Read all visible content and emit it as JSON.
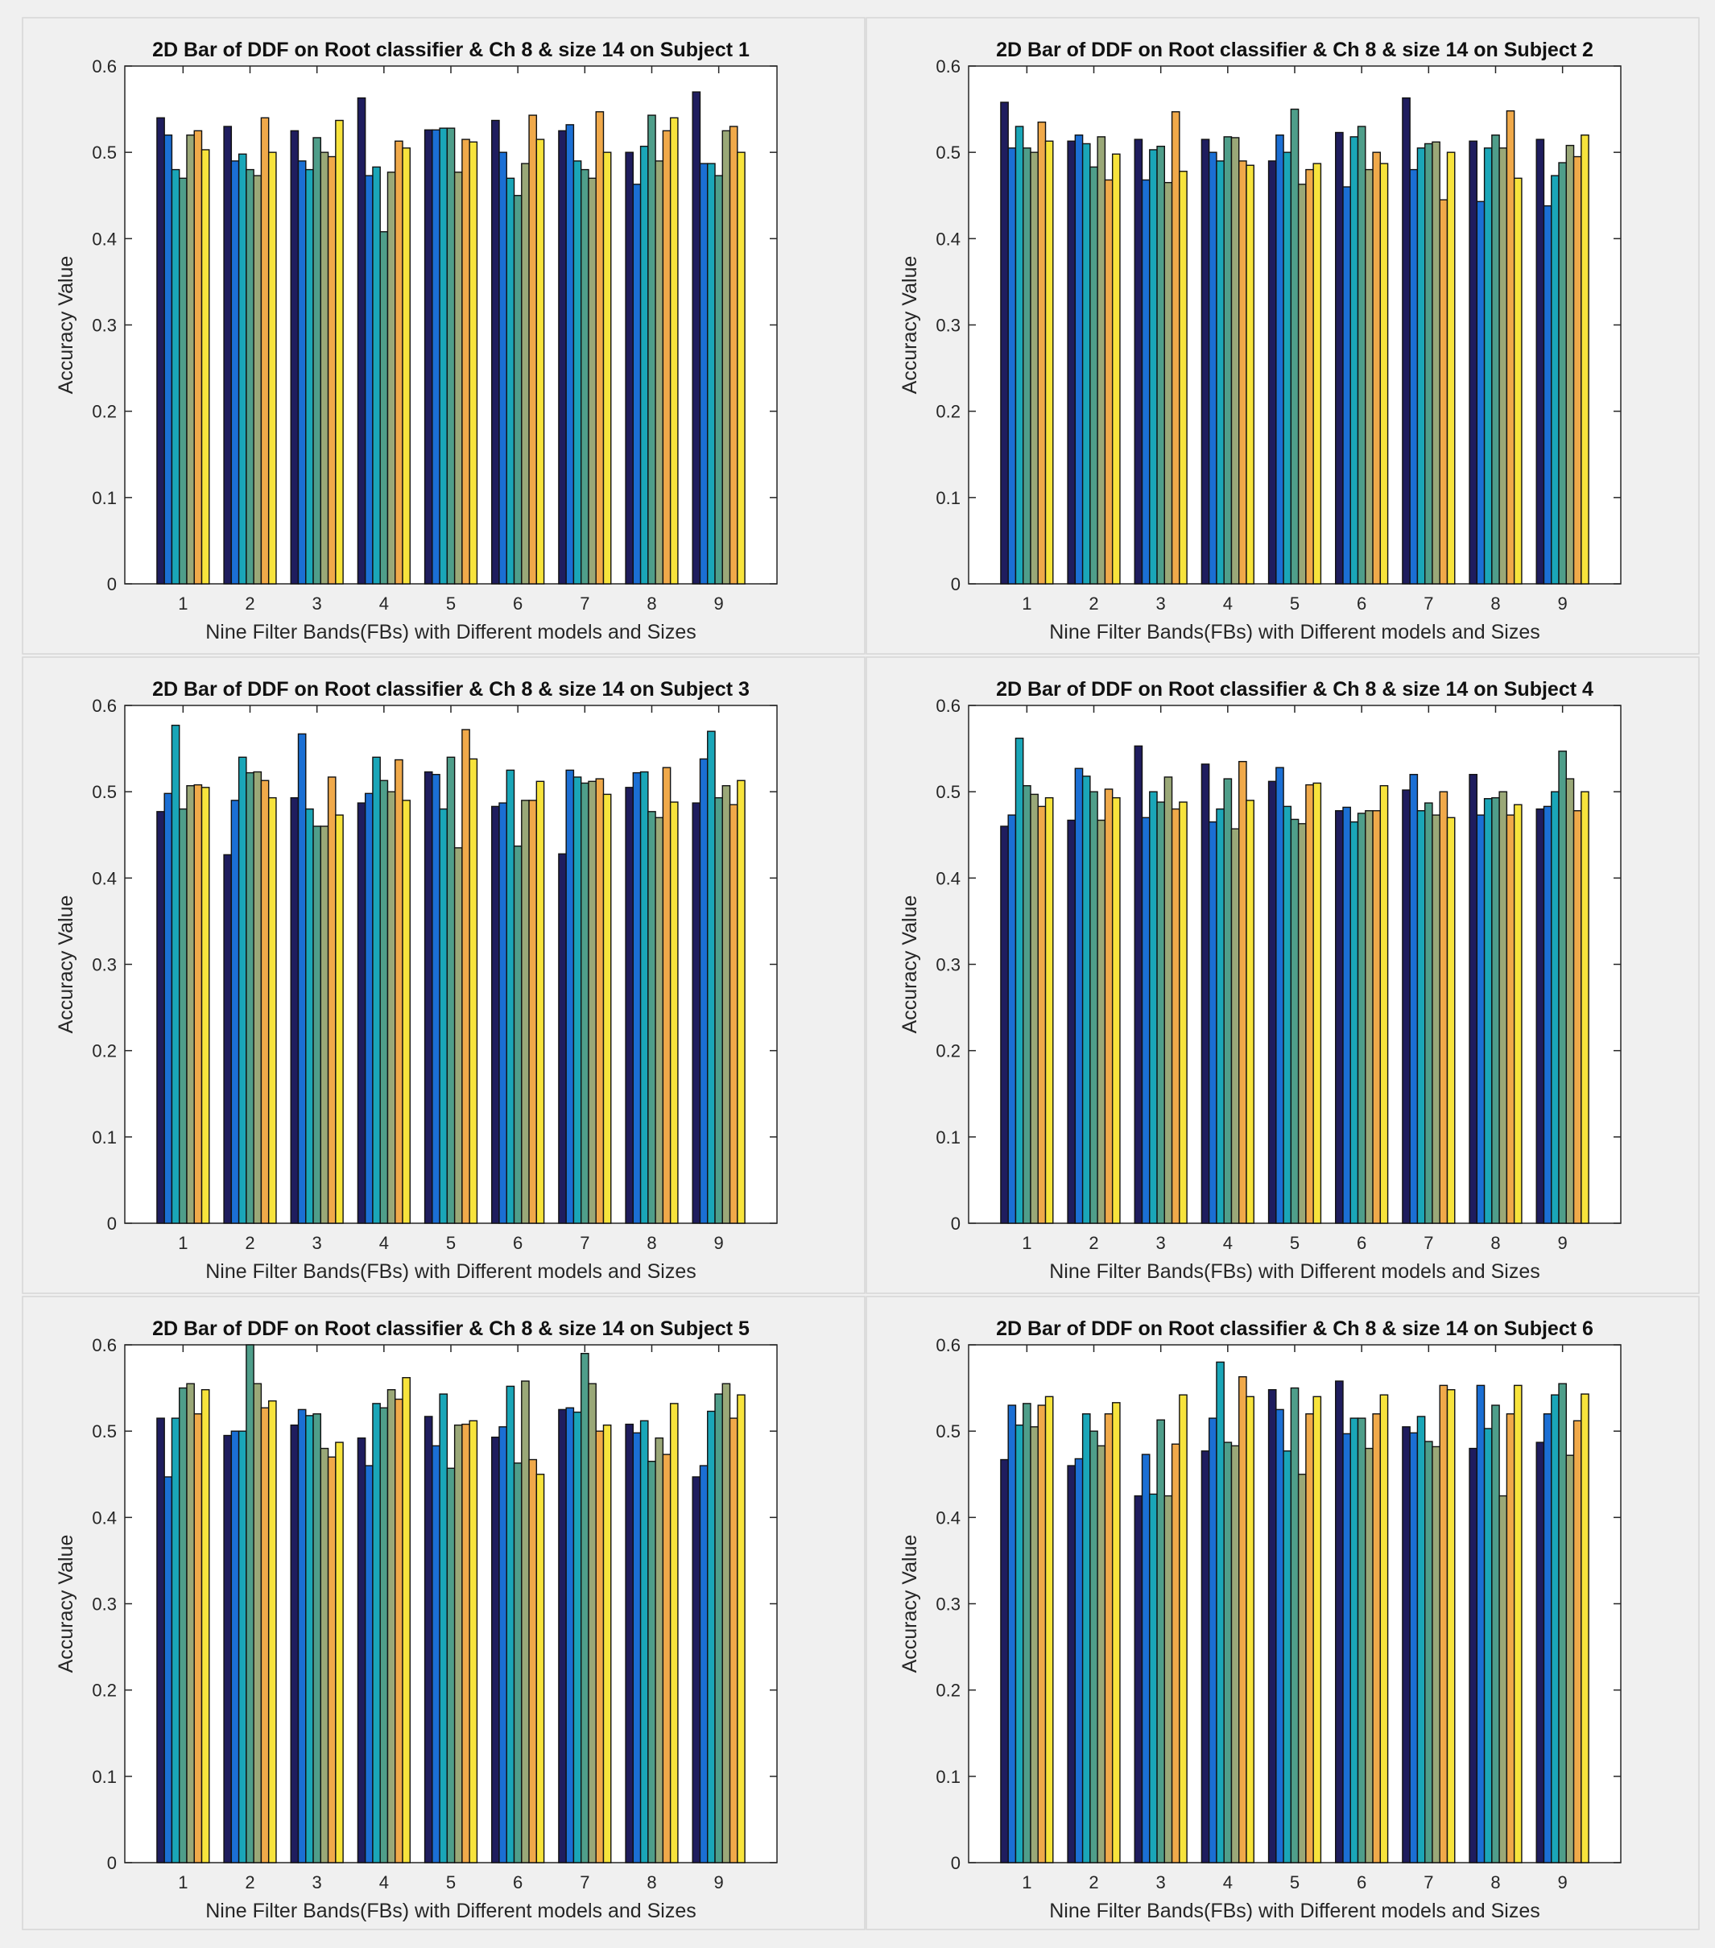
{
  "figure": {
    "series_colors": [
      "#1f1d5e",
      "#1b6fd4",
      "#1aa6b8",
      "#4f9e8a",
      "#9aa878",
      "#f0a94a",
      "#f7e33c"
    ]
  },
  "chart_data": [
    {
      "type": "bar",
      "title": "2D Bar of DDF on Root classifier & Ch 8 & size 14 on Subject 1",
      "xlabel": "Nine Filter Bands(FBs) with Different models and Sizes",
      "ylabel": "Accuracy Value",
      "ylim": [
        0,
        0.6
      ],
      "yticks": [
        "0",
        "0.1",
        "0.2",
        "0.3",
        "0.4",
        "0.5",
        "0.6"
      ],
      "categories": [
        "1",
        "2",
        "3",
        "4",
        "5",
        "6",
        "7",
        "8",
        "9"
      ],
      "groups": [
        [
          0.54,
          0.52,
          0.48,
          0.47,
          0.52,
          0.525,
          0.503
        ],
        [
          0.53,
          0.49,
          0.498,
          0.48,
          0.473,
          0.54,
          0.5
        ],
        [
          0.525,
          0.49,
          0.48,
          0.517,
          0.5,
          0.495,
          0.537
        ],
        [
          0.563,
          0.473,
          0.483,
          0.408,
          0.477,
          0.513,
          0.505
        ],
        [
          0.526,
          0.526,
          0.528,
          0.528,
          0.477,
          0.515,
          0.512
        ],
        [
          0.537,
          0.5,
          0.47,
          0.45,
          0.487,
          0.543,
          0.515
        ],
        [
          0.525,
          0.532,
          0.49,
          0.48,
          0.47,
          0.547,
          0.5
        ],
        [
          0.5,
          0.463,
          0.507,
          0.543,
          0.49,
          0.525,
          0.54
        ],
        [
          0.57,
          0.487,
          0.487,
          0.473,
          0.525,
          0.53,
          0.5
        ]
      ]
    },
    {
      "type": "bar",
      "title": "2D Bar of DDF on Root classifier & Ch 8 & size 14 on Subject 2",
      "xlabel": "Nine Filter Bands(FBs) with Different models and Sizes",
      "ylabel": "Accuracy Value",
      "ylim": [
        0,
        0.6
      ],
      "yticks": [
        "0",
        "0.1",
        "0.2",
        "0.3",
        "0.4",
        "0.5",
        "0.6"
      ],
      "categories": [
        "1",
        "2",
        "3",
        "4",
        "5",
        "6",
        "7",
        "8",
        "9"
      ],
      "groups": [
        [
          0.558,
          0.505,
          0.53,
          0.505,
          0.5,
          0.535,
          0.513
        ],
        [
          0.513,
          0.52,
          0.51,
          0.483,
          0.518,
          0.468,
          0.498
        ],
        [
          0.515,
          0.468,
          0.503,
          0.507,
          0.465,
          0.547,
          0.478
        ],
        [
          0.515,
          0.5,
          0.49,
          0.518,
          0.517,
          0.49,
          0.485
        ],
        [
          0.49,
          0.52,
          0.5,
          0.55,
          0.463,
          0.48,
          0.487
        ],
        [
          0.523,
          0.46,
          0.518,
          0.53,
          0.48,
          0.5,
          0.487
        ],
        [
          0.563,
          0.48,
          0.505,
          0.51,
          0.512,
          0.445,
          0.5
        ],
        [
          0.513,
          0.443,
          0.505,
          0.52,
          0.505,
          0.548,
          0.47
        ],
        [
          0.515,
          0.438,
          0.473,
          0.488,
          0.508,
          0.495,
          0.52
        ]
      ]
    },
    {
      "type": "bar",
      "title": "2D Bar of DDF on Root classifier & Ch 8 & size 14 on Subject 3",
      "xlabel": "Nine Filter Bands(FBs) with Different models and Sizes",
      "ylabel": "Accuracy Value",
      "ylim": [
        0,
        0.6
      ],
      "yticks": [
        "0",
        "0.1",
        "0.2",
        "0.3",
        "0.4",
        "0.5",
        "0.6"
      ],
      "categories": [
        "1",
        "2",
        "3",
        "4",
        "5",
        "6",
        "7",
        "8",
        "9"
      ],
      "groups": [
        [
          0.477,
          0.498,
          0.577,
          0.48,
          0.507,
          0.508,
          0.505
        ],
        [
          0.427,
          0.49,
          0.54,
          0.522,
          0.523,
          0.513,
          0.493
        ],
        [
          0.493,
          0.567,
          0.48,
          0.46,
          0.46,
          0.517,
          0.473
        ],
        [
          0.487,
          0.498,
          0.54,
          0.513,
          0.5,
          0.537,
          0.49
        ],
        [
          0.523,
          0.52,
          0.48,
          0.54,
          0.435,
          0.572,
          0.538
        ],
        [
          0.483,
          0.487,
          0.525,
          0.437,
          0.49,
          0.49,
          0.512
        ],
        [
          0.428,
          0.525,
          0.517,
          0.51,
          0.512,
          0.515,
          0.497
        ],
        [
          0.505,
          0.522,
          0.523,
          0.477,
          0.47,
          0.528,
          0.488
        ],
        [
          0.487,
          0.538,
          0.57,
          0.493,
          0.507,
          0.485,
          0.513
        ]
      ]
    },
    {
      "type": "bar",
      "title": "2D Bar of DDF on Root classifier & Ch 8 & size 14 on Subject 4",
      "xlabel": "Nine Filter Bands(FBs) with Different models and Sizes",
      "ylabel": "Accuracy Value",
      "ylim": [
        0,
        0.6
      ],
      "yticks": [
        "0",
        "0.1",
        "0.2",
        "0.3",
        "0.4",
        "0.5",
        "0.6"
      ],
      "categories": [
        "1",
        "2",
        "3",
        "4",
        "5",
        "6",
        "7",
        "8",
        "9"
      ],
      "groups": [
        [
          0.46,
          0.473,
          0.562,
          0.507,
          0.497,
          0.483,
          0.493
        ],
        [
          0.467,
          0.527,
          0.518,
          0.5,
          0.467,
          0.503,
          0.493
        ],
        [
          0.553,
          0.47,
          0.5,
          0.488,
          0.517,
          0.48,
          0.488
        ],
        [
          0.532,
          0.465,
          0.48,
          0.515,
          0.457,
          0.535,
          0.49
        ],
        [
          0.512,
          0.528,
          0.483,
          0.468,
          0.463,
          0.508,
          0.51
        ],
        [
          0.478,
          0.482,
          0.465,
          0.475,
          0.478,
          0.478,
          0.507
        ],
        [
          0.502,
          0.52,
          0.478,
          0.487,
          0.473,
          0.5,
          0.47
        ],
        [
          0.52,
          0.473,
          0.492,
          0.493,
          0.5,
          0.473,
          0.485
        ],
        [
          0.48,
          0.483,
          0.5,
          0.547,
          0.515,
          0.478,
          0.5
        ]
      ]
    },
    {
      "type": "bar",
      "title": "2D Bar of DDF on Root classifier & Ch 8 & size 14 on Subject 5",
      "xlabel": "Nine Filter Bands(FBs) with Different models and Sizes",
      "ylabel": "Accuracy Value",
      "ylim": [
        0,
        0.6
      ],
      "yticks": [
        "0",
        "0.1",
        "0.2",
        "0.3",
        "0.4",
        "0.5",
        "0.6"
      ],
      "categories": [
        "1",
        "2",
        "3",
        "4",
        "5",
        "6",
        "7",
        "8",
        "9"
      ],
      "groups": [
        [
          0.515,
          0.447,
          0.515,
          0.55,
          0.555,
          0.52,
          0.548
        ],
        [
          0.495,
          0.5,
          0.5,
          0.6,
          0.555,
          0.527,
          0.535
        ],
        [
          0.507,
          0.525,
          0.518,
          0.52,
          0.48,
          0.47,
          0.487
        ],
        [
          0.492,
          0.46,
          0.532,
          0.527,
          0.548,
          0.537,
          0.562
        ],
        [
          0.517,
          0.483,
          0.543,
          0.457,
          0.507,
          0.508,
          0.512
        ],
        [
          0.493,
          0.505,
          0.552,
          0.463,
          0.558,
          0.467,
          0.45
        ],
        [
          0.525,
          0.527,
          0.522,
          0.59,
          0.555,
          0.5,
          0.507
        ],
        [
          0.508,
          0.498,
          0.512,
          0.465,
          0.492,
          0.473,
          0.532
        ],
        [
          0.447,
          0.46,
          0.523,
          0.543,
          0.555,
          0.515,
          0.542
        ]
      ]
    },
    {
      "type": "bar",
      "title": "2D Bar of DDF on Root classifier & Ch 8 & size 14 on Subject 6",
      "xlabel": "Nine Filter Bands(FBs) with Different models and Sizes",
      "ylabel": "Accuracy Value",
      "ylim": [
        0,
        0.6
      ],
      "yticks": [
        "0",
        "0.1",
        "0.2",
        "0.3",
        "0.4",
        "0.5",
        "0.6"
      ],
      "categories": [
        "1",
        "2",
        "3",
        "4",
        "5",
        "6",
        "7",
        "8",
        "9"
      ],
      "groups": [
        [
          0.467,
          0.53,
          0.507,
          0.532,
          0.505,
          0.53,
          0.54
        ],
        [
          0.46,
          0.468,
          0.52,
          0.5,
          0.483,
          0.52,
          0.533
        ],
        [
          0.425,
          0.473,
          0.427,
          0.513,
          0.425,
          0.485,
          0.542
        ],
        [
          0.477,
          0.515,
          0.58,
          0.487,
          0.483,
          0.563,
          0.54
        ],
        [
          0.548,
          0.525,
          0.477,
          0.55,
          0.45,
          0.52,
          0.54
        ],
        [
          0.558,
          0.497,
          0.515,
          0.515,
          0.48,
          0.52,
          0.542
        ],
        [
          0.505,
          0.498,
          0.517,
          0.488,
          0.482,
          0.553,
          0.548
        ],
        [
          0.48,
          0.553,
          0.503,
          0.53,
          0.425,
          0.52,
          0.553
        ],
        [
          0.487,
          0.52,
          0.542,
          0.555,
          0.472,
          0.512,
          0.543
        ]
      ]
    }
  ]
}
